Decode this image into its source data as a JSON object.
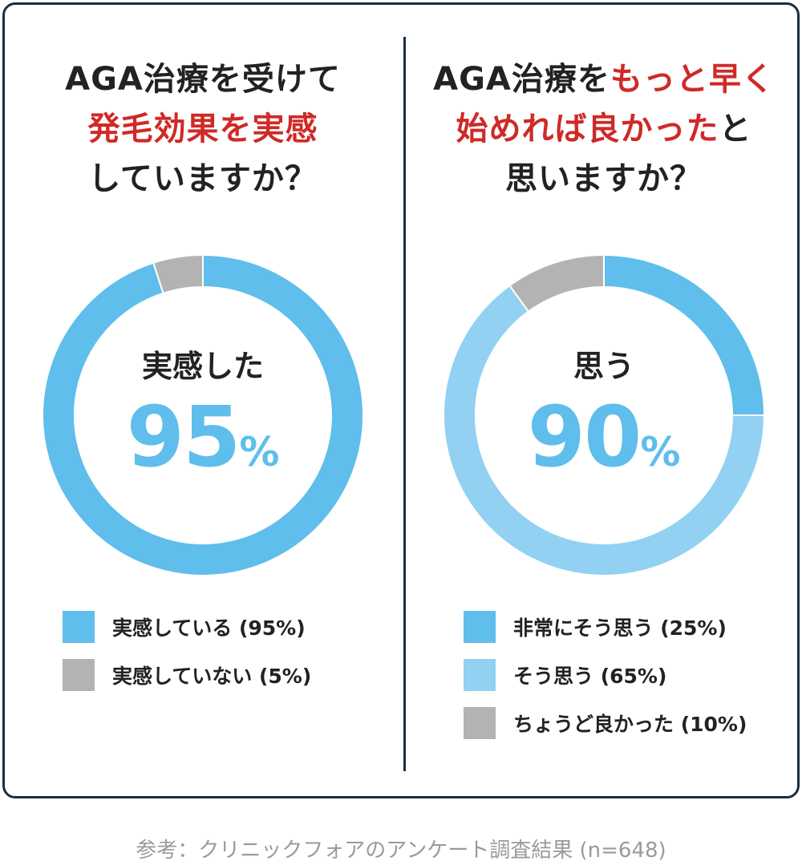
{
  "panels": [
    {
      "title_line1": "AGA治療を受けて",
      "title_line2_highlight": "発毛効果を実感",
      "title_line3": "していますか？",
      "center_label": "実感した",
      "center_value": "95",
      "center_unit": "%",
      "legend": [
        {
          "label": "実感している (95%)",
          "color": "#5fbeeb"
        },
        {
          "label": "実感していない (5%)",
          "color": "#b3b3b3"
        }
      ]
    },
    {
      "title_line1_prefix": "AGA治療を",
      "title_line1_highlight": "もっと早く",
      "title_line2_highlight": "始めれば良かった",
      "title_line2_suffix": "と",
      "title_line3": "思いますか？",
      "center_label": "思う",
      "center_value": "90",
      "center_unit": "%",
      "legend": [
        {
          "label": "非常にそう思う (25%)",
          "color": "#5fbeeb"
        },
        {
          "label": "そう思う (65%)",
          "color": "#92d1f2"
        },
        {
          "label": "ちょうど良かった (10%)",
          "color": "#b3b3b3"
        }
      ]
    }
  ],
  "source": "参考：クリニックフォアのアンケート調査結果 (n=648)",
  "chart_data": [
    {
      "type": "pie",
      "categories": [
        "実感している",
        "実感していない"
      ],
      "values": [
        95,
        5
      ],
      "colors": [
        "#5fbeeb",
        "#b3b3b3"
      ],
      "title": "AGA治療を受けて発毛効果を実感していますか？"
    },
    {
      "type": "pie",
      "categories": [
        "非常にそう思う",
        "そう思う",
        "ちょうど良かった"
      ],
      "values": [
        25,
        65,
        10
      ],
      "colors": [
        "#5fbeeb",
        "#92d1f2",
        "#b3b3b3"
      ],
      "title": "AGA治療をもっと早く始めれば良かったと思いますか？"
    }
  ]
}
